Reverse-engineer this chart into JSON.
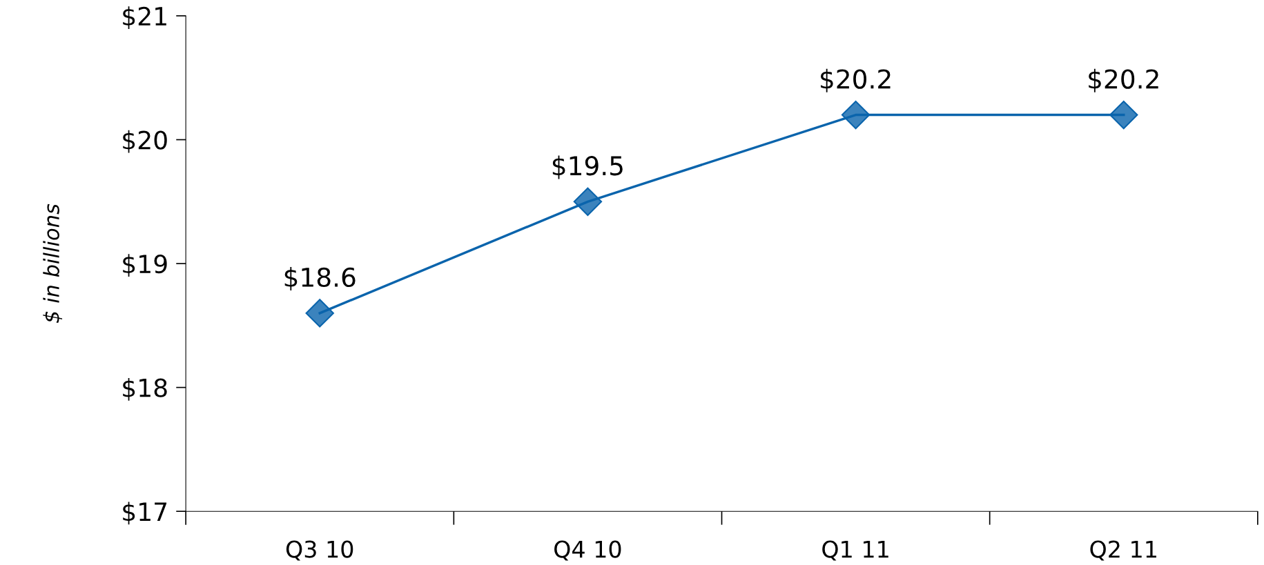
{
  "chart_data": {
    "type": "line",
    "ylabel": "$ in billions",
    "categories": [
      "Q3 10",
      "Q4 10",
      "Q1 11",
      "Q2 11"
    ],
    "series": [
      {
        "color": "#0a64ac",
        "values": [
          18.6,
          19.5,
          20.2,
          20.2
        ],
        "value_labels": [
          "$18.6",
          "$19.5",
          "$20.2",
          "$20.2"
        ]
      }
    ],
    "ylim": [
      17,
      21
    ],
    "yticks": [
      {
        "value": 17,
        "label": "$17"
      },
      {
        "value": 18,
        "label": "$18"
      },
      {
        "value": 19,
        "label": "$19"
      },
      {
        "value": 20,
        "label": "$20"
      },
      {
        "value": 21,
        "label": "$21"
      }
    ],
    "marker": "diamond",
    "line_style": "solid",
    "grid": false,
    "legend": false
  }
}
